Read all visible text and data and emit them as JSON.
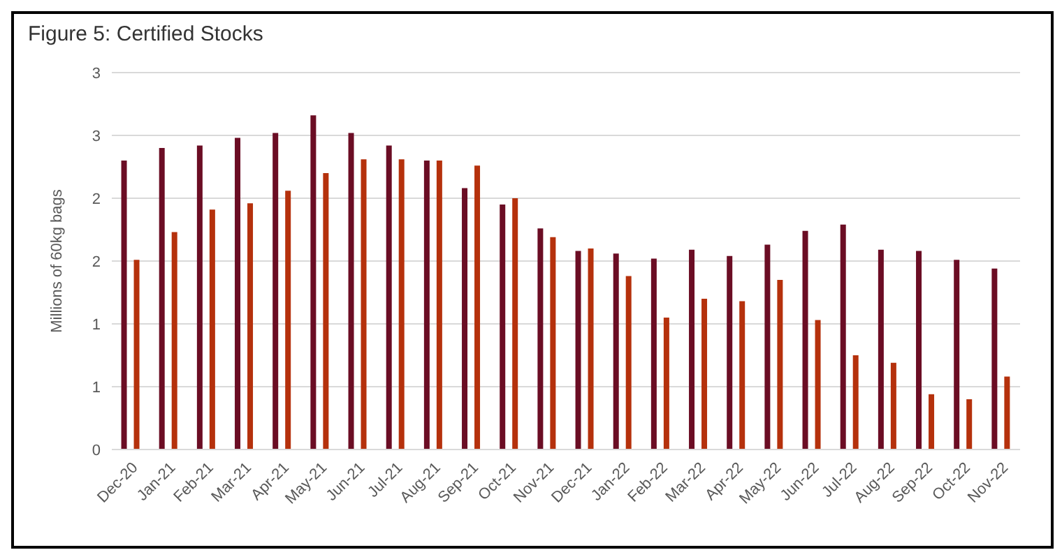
{
  "chart_data": {
    "type": "bar",
    "title": "Figure 5: Certified Stocks",
    "ylabel": "Millions of 60kg bags",
    "categories": [
      "Dec-20",
      "Jan-21",
      "Feb-21",
      "Mar-21",
      "Apr-21",
      "May-21",
      "Jun-21",
      "Jul-21",
      "Aug-21",
      "Sep-21",
      "Oct-21",
      "Nov-21",
      "Dec-21",
      "Jan-22",
      "Feb-22",
      "Mar-22",
      "Apr-22",
      "May-22",
      "Jun-22",
      "Jul-22",
      "Aug-22",
      "Sep-22",
      "Oct-22",
      "Nov-22"
    ],
    "series": [
      {
        "color": "#6b0d24",
        "values": [
          2.3,
          2.4,
          2.42,
          2.48,
          2.52,
          2.66,
          2.52,
          2.42,
          2.3,
          2.08,
          1.95,
          1.76,
          1.58,
          1.56,
          1.52,
          1.59,
          1.54,
          1.63,
          1.74,
          1.79,
          1.59,
          1.58,
          1.51,
          1.44
        ]
      },
      {
        "color": "#b5310c",
        "values": [
          1.51,
          1.73,
          1.91,
          1.96,
          2.06,
          2.2,
          2.31,
          2.31,
          2.3,
          2.26,
          2.0,
          1.69,
          1.6,
          1.38,
          1.05,
          1.2,
          1.18,
          1.35,
          1.03,
          0.75,
          0.69,
          0.44,
          0.4,
          0.58
        ]
      }
    ],
    "ylim": [
      0,
      3
    ],
    "yticks": [
      0,
      {
        "value": 0.5,
        "label": "1"
      },
      {
        "value": 1,
        "label": "1"
      },
      {
        "value": 1.5,
        "label": "2"
      },
      {
        "value": 2,
        "label": "2"
      },
      {
        "value": 2.5,
        "label": "3"
      },
      {
        "value": 3,
        "label": "3"
      }
    ],
    "grid": "y",
    "legend": false
  }
}
